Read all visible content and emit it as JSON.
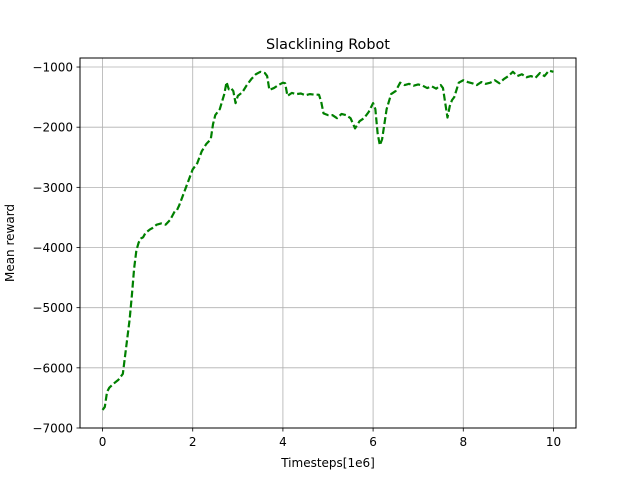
{
  "chart_data": {
    "type": "line",
    "title": "Slacklining Robot",
    "xlabel": "Timesteps[1e6]",
    "ylabel": "Mean reward",
    "xlim": [
      -0.5,
      10.5
    ],
    "ylim": [
      -7000,
      -850
    ],
    "xticks": [
      0,
      2,
      4,
      6,
      8,
      10
    ],
    "yticks": [
      -7000,
      -6000,
      -5000,
      -4000,
      -3000,
      -2000,
      -1000
    ],
    "xtick_labels": [
      "0",
      "2",
      "4",
      "6",
      "8",
      "10"
    ],
    "ytick_labels": [
      "−7000",
      "−6000",
      "−5000",
      "−4000",
      "−3000",
      "−2000",
      "−1000"
    ],
    "grid": true,
    "series": [
      {
        "color": "#008000",
        "line_style": "dashed",
        "x": [
          0,
          0.05,
          0.1,
          0.15,
          0.25,
          0.35,
          0.45,
          0.5,
          0.55,
          0.6,
          0.65,
          0.7,
          0.75,
          0.8,
          0.85,
          0.9,
          0.95,
          1.0,
          1.05,
          1.1,
          1.2,
          1.3,
          1.4,
          1.5,
          1.6,
          1.65,
          1.7,
          1.8,
          1.9,
          2.0,
          2.1,
          2.2,
          2.3,
          2.4,
          2.45,
          2.5,
          2.6,
          2.7,
          2.75,
          2.8,
          2.85,
          2.9,
          2.95,
          3.0,
          3.1,
          3.2,
          3.3,
          3.4,
          3.5,
          3.6,
          3.65,
          3.7,
          3.8,
          3.9,
          4.0,
          4.05,
          4.1,
          4.2,
          4.3,
          4.4,
          4.5,
          4.6,
          4.7,
          4.8,
          4.85,
          4.9,
          5.0,
          5.1,
          5.2,
          5.3,
          5.4,
          5.5,
          5.6,
          5.7,
          5.8,
          5.9,
          6.0,
          6.05,
          6.1,
          6.15,
          6.2,
          6.3,
          6.4,
          6.5,
          6.6,
          6.7,
          6.8,
          6.9,
          7.0,
          7.1,
          7.2,
          7.3,
          7.4,
          7.5,
          7.55,
          7.6,
          7.65,
          7.7,
          7.75,
          7.8,
          7.9,
          8.0,
          8.1,
          8.2,
          8.3,
          8.4,
          8.5,
          8.6,
          8.7,
          8.8,
          8.9,
          9.0,
          9.1,
          9.2,
          9.3,
          9.4,
          9.5,
          9.6,
          9.7,
          9.8,
          9.9,
          10.0
        ],
        "y": [
          -6700,
          -6650,
          -6400,
          -6330,
          -6260,
          -6200,
          -6100,
          -5800,
          -5500,
          -5200,
          -4800,
          -4350,
          -4050,
          -3920,
          -3850,
          -3830,
          -3760,
          -3730,
          -3700,
          -3680,
          -3620,
          -3600,
          -3620,
          -3540,
          -3400,
          -3380,
          -3300,
          -3100,
          -2900,
          -2700,
          -2600,
          -2400,
          -2280,
          -2200,
          -1950,
          -1800,
          -1700,
          -1450,
          -1250,
          -1370,
          -1350,
          -1400,
          -1600,
          -1480,
          -1420,
          -1300,
          -1200,
          -1120,
          -1080,
          -1100,
          -1150,
          -1380,
          -1350,
          -1300,
          -1260,
          -1270,
          -1480,
          -1430,
          -1450,
          -1440,
          -1470,
          -1450,
          -1460,
          -1460,
          -1580,
          -1770,
          -1800,
          -1800,
          -1850,
          -1780,
          -1800,
          -1850,
          -2020,
          -1900,
          -1850,
          -1750,
          -1600,
          -1700,
          -2100,
          -2300,
          -2200,
          -1700,
          -1450,
          -1400,
          -1260,
          -1300,
          -1280,
          -1310,
          -1290,
          -1310,
          -1350,
          -1320,
          -1360,
          -1300,
          -1350,
          -1600,
          -1840,
          -1650,
          -1550,
          -1500,
          -1260,
          -1220,
          -1250,
          -1270,
          -1300,
          -1250,
          -1280,
          -1260,
          -1220,
          -1270,
          -1200,
          -1150,
          -1080,
          -1150,
          -1120,
          -1170,
          -1150,
          -1180,
          -1100,
          -1150,
          -1060,
          -1080
        ]
      }
    ]
  }
}
